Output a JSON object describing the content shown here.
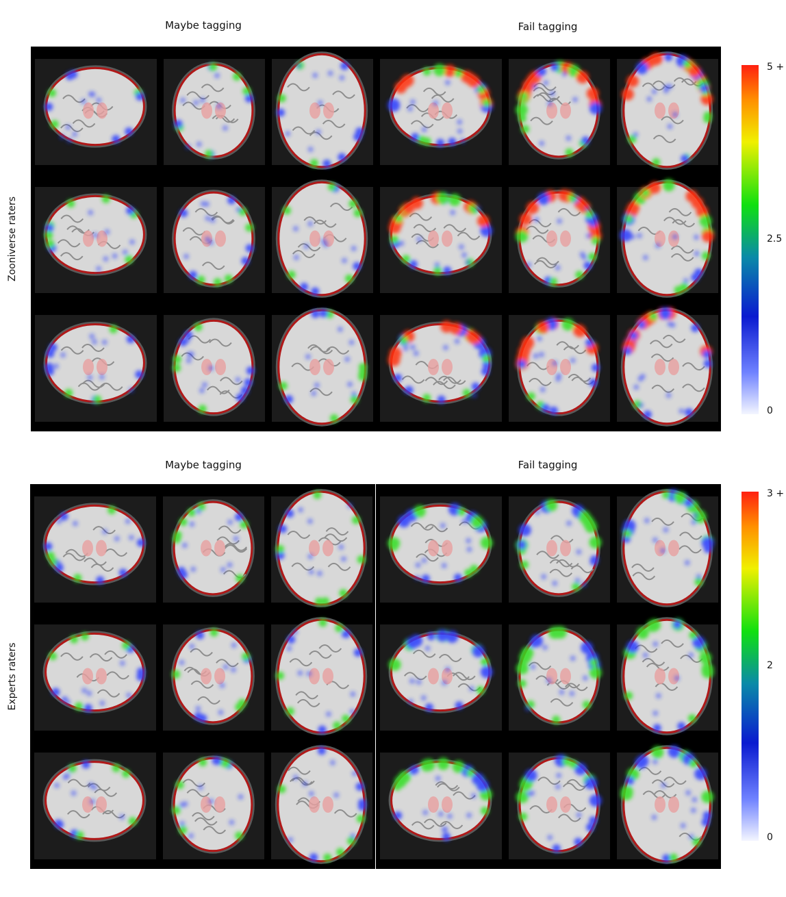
{
  "groups": [
    {
      "row_label": "Zooniverse raters",
      "columns": [
        {
          "title": "Maybe tagging",
          "heat": "low"
        },
        {
          "title": "Fail tagging",
          "heat": "high"
        }
      ],
      "colorbar": {
        "max_label": "5 +",
        "mid_label": "2.5",
        "min_label": "0"
      }
    },
    {
      "row_label": "Experts raters",
      "columns": [
        {
          "title": "Maybe tagging",
          "heat": "low"
        },
        {
          "title": "Fail tagging",
          "heat": "mid"
        }
      ],
      "colorbar": {
        "max_label": "3 +",
        "mid_label": "2",
        "min_label": "0"
      }
    }
  ],
  "colors": {
    "panel_bg": "#000000",
    "brain": "#d8d8d8",
    "outline": "#b01818",
    "heat_low": "#2a3cff",
    "heat_mid": "#30e020",
    "heat_high": "#ff3010"
  }
}
